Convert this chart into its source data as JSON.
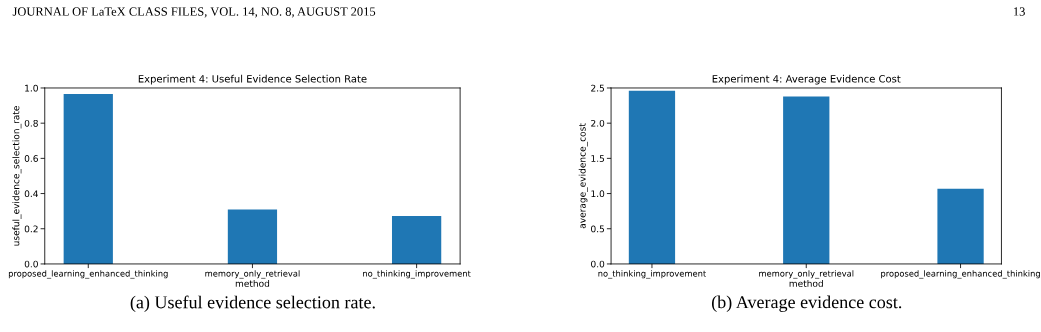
{
  "chart_data": [
    {
      "type": "bar",
      "title": "Experiment 4: Useful Evidence Selection Rate",
      "xlabel": "method",
      "ylabel": "useful_evidence_selection_rate",
      "categories": [
        "proposed_learning_enhanced_thinking",
        "memory_only_retrieval",
        "no_thinking_improvement"
      ],
      "values": [
        0.966,
        0.31,
        0.272
      ],
      "color": "#1f77b4",
      "ylim": [
        0,
        1.0
      ],
      "yticks": [
        {
          "value": 0,
          "label": "0.0"
        },
        {
          "value": 0.2,
          "label": "0.2"
        },
        {
          "value": 0.4,
          "label": "0.4"
        },
        {
          "value": 0.6,
          "label": "0.6"
        },
        {
          "value": 0.8,
          "label": "0.8"
        },
        {
          "value": 1.0,
          "label": "1.0"
        }
      ],
      "grid": false,
      "legend": false,
      "annotations": [
        "JOURNAL OF LaTeX CLASS FILES, VOL. 14, NO. 8, AUGUST 2015",
        "(a) Useful evidence selection rate."
      ]
    },
    {
      "type": "bar",
      "title": "Experiment 4: Average Evidence Cost",
      "xlabel": "method",
      "ylabel": "average_evidence_cost",
      "categories": [
        "no_thinking_improvement",
        "memory_only_retrieval",
        "proposed_learning_enhanced_thinking"
      ],
      "values": [
        2.46,
        2.38,
        1.07
      ],
      "color": "#1f77b4",
      "ylim": [
        0,
        2.5
      ],
      "yticks": [
        {
          "value": 0,
          "label": "0.0"
        },
        {
          "value": 0.5,
          "label": "0.5"
        },
        {
          "value": 1.0,
          "label": "1.0"
        },
        {
          "value": 1.5,
          "label": "1.5"
        },
        {
          "value": 2.0,
          "label": "2.0"
        },
        {
          "value": 2.5,
          "label": "2.5"
        }
      ],
      "grid": false,
      "legend": false,
      "annotations": [
        "13",
        "(b) Average evidence cost."
      ]
    }
  ]
}
